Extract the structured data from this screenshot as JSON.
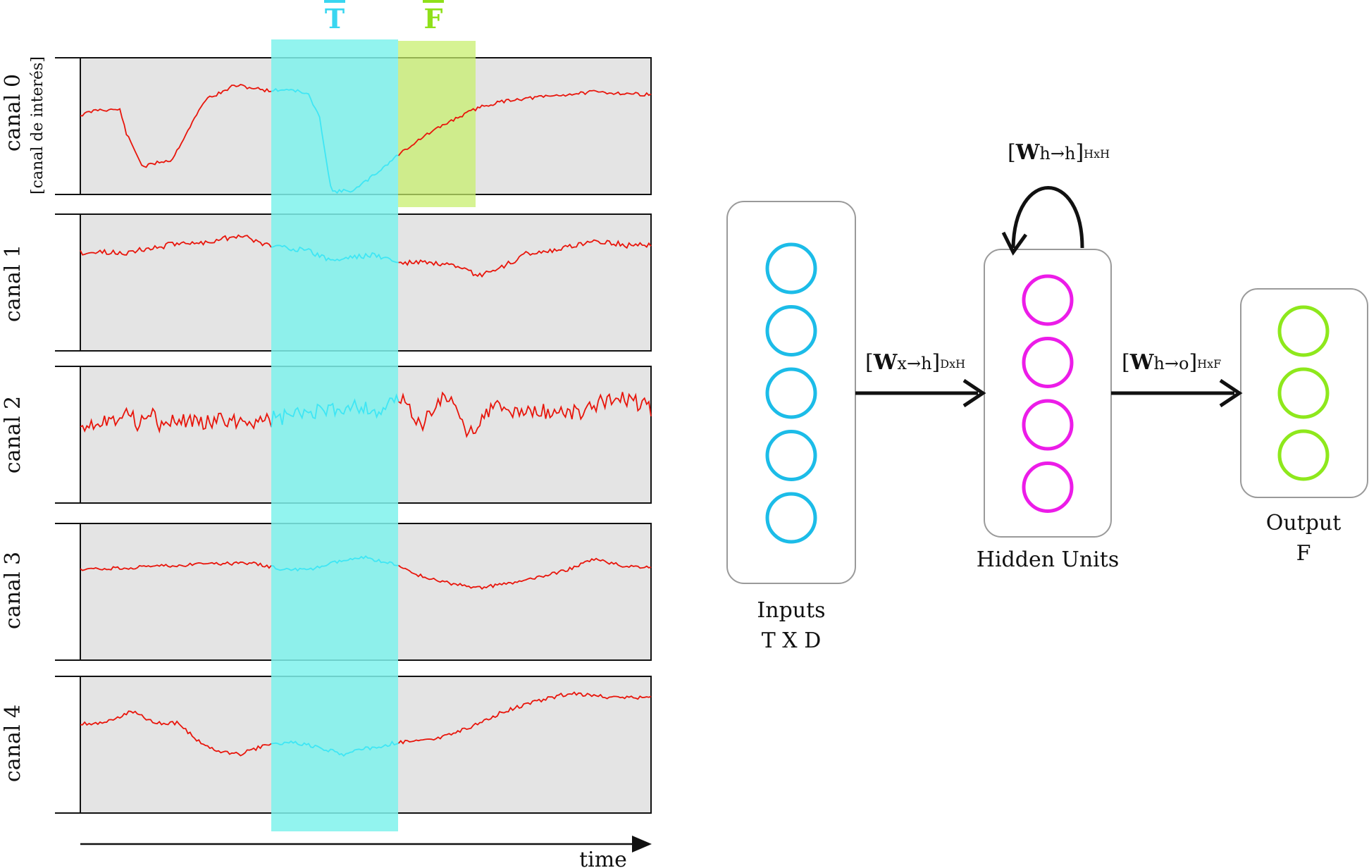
{
  "colors": {
    "panel_fill": "#e4e4e4",
    "signal": "#e8150b",
    "window_T": "#7ff2ec",
    "window_F": "#c6ef6a",
    "label_T": "#39d6f0",
    "label_F": "#8fe01a",
    "input_units": "#1cbce8",
    "hidden_units": "#ec1ce8",
    "output_units": "#8ee81c",
    "box_stroke": "#9a9a9a",
    "ink": "#111111"
  },
  "windows": {
    "T_label": "T",
    "F_label": "F"
  },
  "channels": [
    {
      "label": "canal 0",
      "sublabel": "[canal de interés]"
    },
    {
      "label": "canal 1"
    },
    {
      "label": "canal 2"
    },
    {
      "label": "canal 3"
    },
    {
      "label": "canal 4"
    }
  ],
  "time_axis": {
    "label": "time"
  },
  "network": {
    "inputs": {
      "line1": "Inputs",
      "line2": "T X D",
      "unit_count": 5
    },
    "hidden": {
      "label": "Hidden Units",
      "unit_count": 4
    },
    "output": {
      "line1": "Output",
      "line2": "F",
      "unit_count": 3
    },
    "weights": {
      "input_to_hidden": {
        "bold": "W",
        "arrow": "x→h",
        "dims": "DxH"
      },
      "hidden_to_hidden": {
        "bold": "W",
        "arrow": "h→h",
        "dims": "HxH"
      },
      "hidden_to_output": {
        "bold": "W",
        "arrow": "h→o",
        "dims": "HxF"
      }
    }
  }
}
